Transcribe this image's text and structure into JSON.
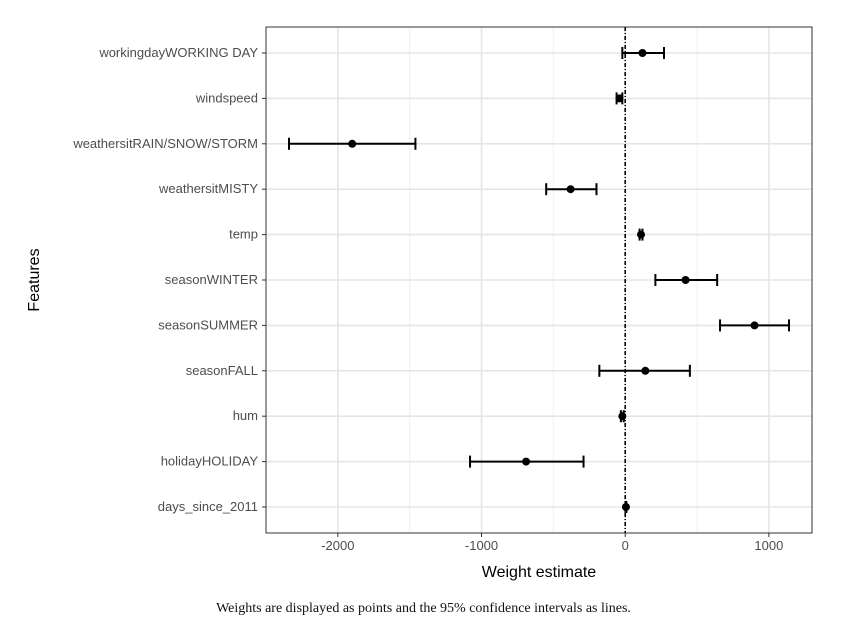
{
  "chart_data": {
    "type": "forest",
    "xlabel": "Weight estimate",
    "ylabel": "Features",
    "xlim": [
      -2500,
      1300
    ],
    "xticks": [
      -2000,
      -1000,
      0,
      1000
    ],
    "xtick_labels": [
      "-2000",
      "-1000",
      "0",
      "1000"
    ],
    "reference_line": 0,
    "grid": true,
    "points": [
      {
        "feature": "workingdayWORKING DAY",
        "estimate": 120,
        "lower": -20,
        "upper": 270
      },
      {
        "feature": "windspeed",
        "estimate": -40,
        "lower": -60,
        "upper": -20
      },
      {
        "feature": "weathersitRAIN/SNOW/STORM",
        "estimate": -1900,
        "lower": -2340,
        "upper": -1460
      },
      {
        "feature": "weathersitMISTY",
        "estimate": -380,
        "lower": -550,
        "upper": -200
      },
      {
        "feature": "temp",
        "estimate": 110,
        "lower": 100,
        "upper": 120
      },
      {
        "feature": "seasonWINTER",
        "estimate": 420,
        "lower": 210,
        "upper": 640
      },
      {
        "feature": "seasonSUMMER",
        "estimate": 900,
        "lower": 660,
        "upper": 1140
      },
      {
        "feature": "seasonFALL",
        "estimate": 140,
        "lower": -180,
        "upper": 450
      },
      {
        "feature": "hum",
        "estimate": -20,
        "lower": -30,
        "upper": -10
      },
      {
        "feature": "holidayHOLIDAY",
        "estimate": -690,
        "lower": -1080,
        "upper": -290
      },
      {
        "feature": "days_since_2011",
        "estimate": 5,
        "lower": 2,
        "upper": 8
      }
    ]
  },
  "caption": "Weights are displayed as points and the 95% confidence intervals as lines."
}
